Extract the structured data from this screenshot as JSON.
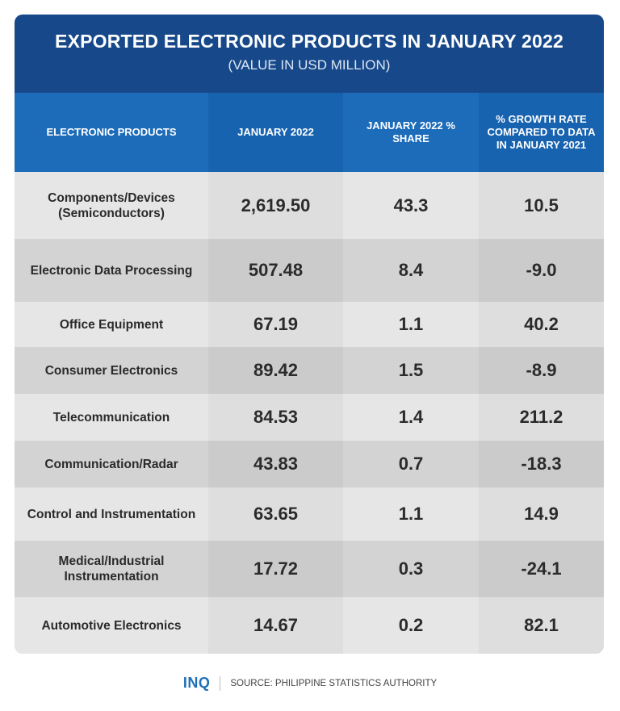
{
  "chart_data": {
    "type": "table",
    "title": "EXPORTED ELECTRONIC PRODUCTS IN JANUARY 2022",
    "subtitle": "(VALUE IN USD MILLION)",
    "columns": [
      "ELECTRONIC PRODUCTS",
      "JANUARY 2022",
      "JANUARY 2022 % SHARE",
      "% GROWTH RATE COMPARED TO DATA IN JANUARY 2021"
    ],
    "rows": [
      [
        "Components/Devices (Semiconductors)",
        "2,619.50",
        "43.3",
        "10.5"
      ],
      [
        "Electronic Data Processing",
        "507.48",
        "8.4",
        "-9.0"
      ],
      [
        "Office Equipment",
        "67.19",
        "1.1",
        "40.2"
      ],
      [
        "Consumer Electronics",
        "89.42",
        "1.5",
        "-8.9"
      ],
      [
        "Telecommunication",
        "84.53",
        "1.4",
        "211.2"
      ],
      [
        "Communication/Radar",
        "43.83",
        "0.7",
        "-18.3"
      ],
      [
        "Control and Instrumentation",
        "63.65",
        "1.1",
        "14.9"
      ],
      [
        "Medical/Industrial Instrumentation",
        "17.72",
        "0.3",
        "-24.1"
      ],
      [
        "Automotive Electronics",
        "14.67",
        "0.2",
        "82.1"
      ]
    ]
  },
  "footer": {
    "logo": "INQ",
    "source": "SOURCE: PHILIPPINE STATISTICS AUTHORITY"
  },
  "colors": {
    "title_band": "#17498a",
    "header": "#1c6cba",
    "logo": "#1f6fb8"
  }
}
